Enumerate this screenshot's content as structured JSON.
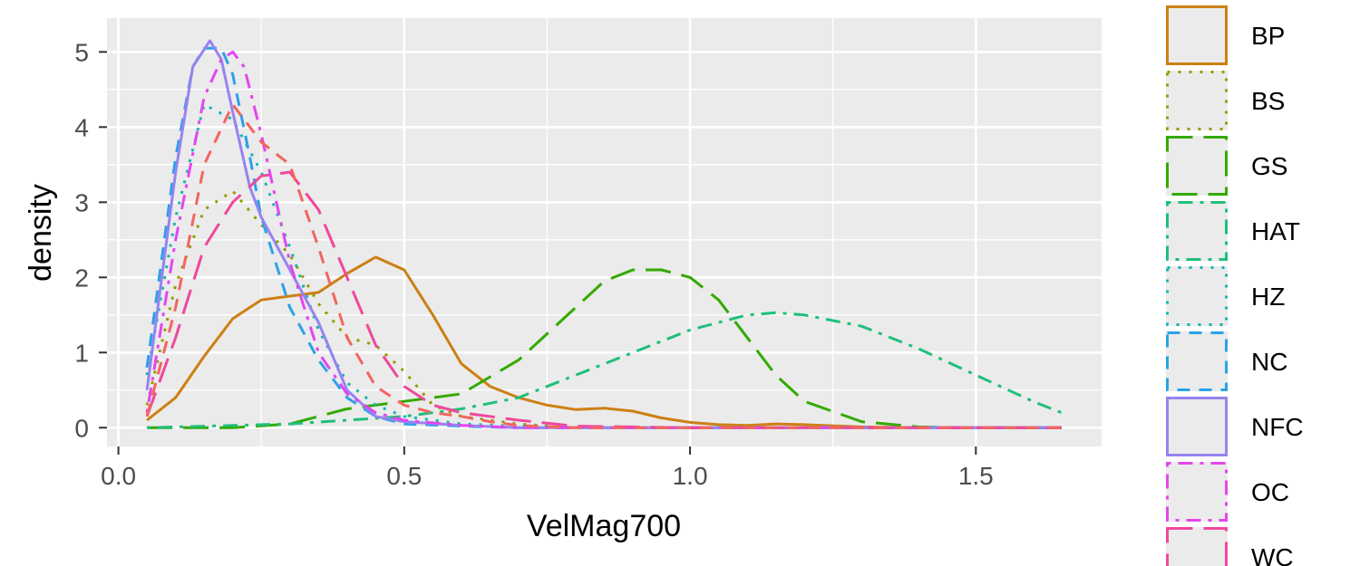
{
  "chart_data": {
    "type": "line",
    "title": "",
    "xlabel": "VelMag700",
    "ylabel": "density",
    "xlim": [
      -0.02,
      1.72
    ],
    "ylim": [
      -0.25,
      5.45
    ],
    "x_ticks": [
      0.0,
      0.5,
      1.0,
      1.5
    ],
    "x_tick_labels": [
      "0.0",
      "0.5",
      "1.0",
      "1.5"
    ],
    "y_ticks": [
      0,
      1,
      2,
      3,
      4,
      5
    ],
    "y_tick_labels": [
      "0",
      "1",
      "2",
      "3",
      "4",
      "5"
    ],
    "grid": true,
    "legend_position": "right",
    "series": [
      {
        "name": "BP",
        "color": "#CD7F14",
        "dash": "solid",
        "x": [
          0.05,
          0.1,
          0.15,
          0.2,
          0.25,
          0.3,
          0.35,
          0.4,
          0.45,
          0.5,
          0.55,
          0.6,
          0.65,
          0.7,
          0.75,
          0.8,
          0.85,
          0.9,
          0.95,
          1.0,
          1.05,
          1.1,
          1.15,
          1.2,
          1.3,
          1.4,
          1.5,
          1.65
        ],
        "y": [
          0.1,
          0.4,
          0.95,
          1.45,
          1.7,
          1.75,
          1.8,
          2.05,
          2.27,
          2.1,
          1.5,
          0.85,
          0.55,
          0.4,
          0.3,
          0.24,
          0.26,
          0.22,
          0.13,
          0.07,
          0.04,
          0.03,
          0.05,
          0.04,
          0.01,
          0.0,
          0.0,
          0.0
        ]
      },
      {
        "name": "BS",
        "color": "#999900",
        "dash": "dot",
        "x": [
          0.05,
          0.1,
          0.15,
          0.2,
          0.25,
          0.3,
          0.35,
          0.4,
          0.45,
          0.5,
          0.55,
          0.6,
          0.65,
          0.7,
          0.8,
          1.0,
          1.65
        ],
        "y": [
          0.3,
          1.9,
          2.9,
          3.15,
          2.7,
          2.3,
          1.65,
          1.2,
          1.1,
          0.75,
          0.3,
          0.15,
          0.1,
          0.05,
          0.0,
          0.0,
          0.0
        ]
      },
      {
        "name": "GS",
        "color": "#33AA00",
        "dash": "dash-long",
        "x": [
          0.05,
          0.2,
          0.3,
          0.4,
          0.5,
          0.6,
          0.7,
          0.8,
          0.85,
          0.9,
          0.95,
          1.0,
          1.05,
          1.1,
          1.15,
          1.2,
          1.3,
          1.4,
          1.5,
          1.65
        ],
        "y": [
          0.0,
          0.0,
          0.05,
          0.25,
          0.35,
          0.45,
          0.9,
          1.6,
          1.95,
          2.1,
          2.1,
          2.0,
          1.7,
          1.2,
          0.7,
          0.35,
          0.08,
          0.01,
          0.0,
          0.0
        ]
      },
      {
        "name": "HAT",
        "color": "#1FBF7A",
        "dash": "dotdash",
        "x": [
          0.05,
          0.3,
          0.4,
          0.5,
          0.6,
          0.7,
          0.8,
          0.9,
          1.0,
          1.1,
          1.15,
          1.2,
          1.3,
          1.4,
          1.5,
          1.6,
          1.65
        ],
        "y": [
          0.0,
          0.05,
          0.1,
          0.15,
          0.25,
          0.4,
          0.7,
          1.0,
          1.3,
          1.5,
          1.53,
          1.5,
          1.35,
          1.05,
          0.7,
          0.35,
          0.2
        ]
      },
      {
        "name": "HZ",
        "color": "#16B5B0",
        "dash": "dot",
        "x": [
          0.05,
          0.1,
          0.15,
          0.2,
          0.25,
          0.3,
          0.35,
          0.4,
          0.45,
          0.5,
          0.6,
          0.7,
          0.8,
          1.0,
          1.65
        ],
        "y": [
          0.7,
          2.8,
          4.3,
          4.1,
          3.4,
          2.4,
          1.3,
          0.6,
          0.3,
          0.15,
          0.05,
          0.02,
          0.0,
          0.0,
          0.0
        ]
      },
      {
        "name": "NC",
        "color": "#2AA2E8",
        "dash": "dash",
        "x": [
          0.05,
          0.1,
          0.13,
          0.15,
          0.18,
          0.2,
          0.23,
          0.25,
          0.3,
          0.35,
          0.4,
          0.45,
          0.5,
          0.6,
          0.7,
          0.8,
          1.0,
          1.65
        ],
        "y": [
          0.8,
          3.6,
          4.8,
          5.05,
          5.05,
          4.7,
          3.6,
          2.8,
          1.6,
          0.9,
          0.4,
          0.15,
          0.05,
          0.02,
          0.0,
          0.0,
          0.0,
          0.0
        ]
      },
      {
        "name": "NFC",
        "color": "#9783F0",
        "dash": "solid",
        "x": [
          0.05,
          0.1,
          0.13,
          0.16,
          0.18,
          0.2,
          0.23,
          0.25,
          0.3,
          0.35,
          0.4,
          0.45,
          0.5,
          0.6,
          0.7,
          0.8,
          1.0,
          1.65
        ],
        "y": [
          0.5,
          3.4,
          4.8,
          5.15,
          4.9,
          4.2,
          3.2,
          2.8,
          2.1,
          1.4,
          0.5,
          0.15,
          0.08,
          0.03,
          0.0,
          0.0,
          0.0,
          0.0
        ]
      },
      {
        "name": "OC",
        "color": "#E346EE",
        "dash": "dotdash",
        "x": [
          0.05,
          0.1,
          0.15,
          0.18,
          0.2,
          0.22,
          0.25,
          0.3,
          0.35,
          0.4,
          0.45,
          0.5,
          0.6,
          0.7,
          0.8,
          1.0,
          1.65
        ],
        "y": [
          0.2,
          2.5,
          4.4,
          4.9,
          5.0,
          4.8,
          3.9,
          2.2,
          1.0,
          0.45,
          0.2,
          0.1,
          0.03,
          0.0,
          0.0,
          0.0,
          0.0
        ]
      },
      {
        "name": "WC",
        "color": "#F0479E",
        "dash": "dash-long",
        "x": [
          0.05,
          0.1,
          0.15,
          0.2,
          0.25,
          0.3,
          0.35,
          0.4,
          0.45,
          0.5,
          0.55,
          0.6,
          0.65,
          0.7,
          0.8,
          1.0,
          1.65
        ],
        "y": [
          0.15,
          1.2,
          2.4,
          3.0,
          3.35,
          3.4,
          2.9,
          2.0,
          1.1,
          0.55,
          0.3,
          0.2,
          0.15,
          0.1,
          0.02,
          0.0,
          0.0
        ]
      },
      {
        "name": "",
        "color": "#F2665E",
        "dash": "dash",
        "x": [
          0.05,
          0.1,
          0.15,
          0.2,
          0.25,
          0.3,
          0.35,
          0.4,
          0.45,
          0.5,
          0.55,
          0.6,
          0.65,
          0.7,
          0.8,
          1.0,
          1.65
        ],
        "y": [
          0.15,
          1.6,
          3.5,
          4.3,
          3.8,
          3.5,
          2.4,
          1.2,
          0.55,
          0.3,
          0.2,
          0.15,
          0.08,
          0.03,
          0.0,
          0.0,
          0.0
        ]
      }
    ]
  }
}
